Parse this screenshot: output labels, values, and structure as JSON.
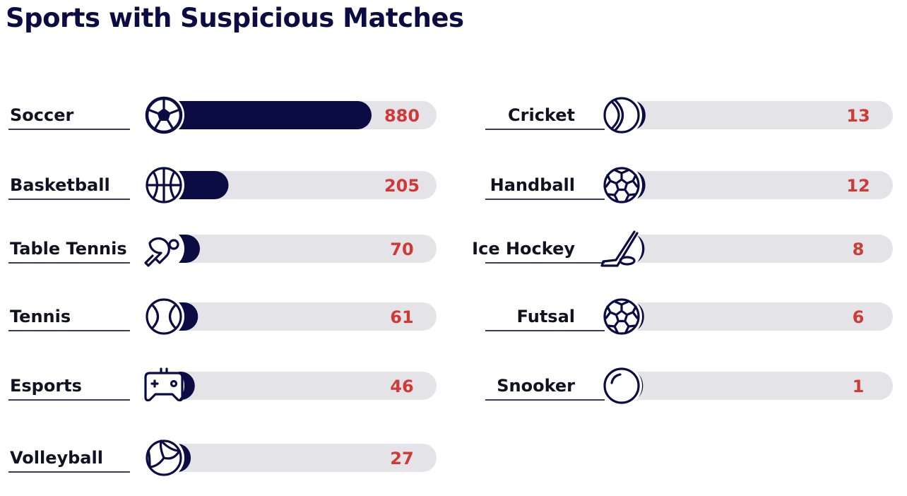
{
  "header": {
    "title": "Sports with Suspicious Matches"
  },
  "colors": {
    "bar": "#0c0c45",
    "track": "#e4e4e8",
    "value": "#d03a36",
    "label": "#111122",
    "underline": "#3a3a6a"
  },
  "chart_data": {
    "type": "bar",
    "title": "Sports with Suspicious Matches",
    "categories": [
      "Soccer",
      "Basketball",
      "Table Tennis",
      "Tennis",
      "Esports",
      "Volleyball",
      "Cricket",
      "Handball",
      "Ice Hockey",
      "Futsal",
      "Snooker"
    ],
    "values": [
      880,
      205,
      70,
      61,
      46,
      27,
      13,
      12,
      8,
      6,
      1
    ],
    "icons": [
      "soccer-ball-icon",
      "basketball-icon",
      "table-tennis-paddle-icon",
      "tennis-ball-icon",
      "gamepad-icon",
      "volleyball-icon",
      "cricket-ball-icon",
      "handball-icon",
      "hockey-stick-icon",
      "futsal-ball-icon",
      "snooker-ball-icon"
    ],
    "columns": 2,
    "legend": "none",
    "grid": false
  }
}
